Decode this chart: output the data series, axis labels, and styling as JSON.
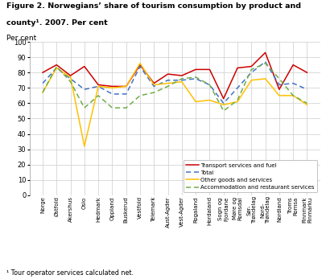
{
  "title_line1": "Figure 2. Norwegians’ share of tourism consumption by product and",
  "title_line2": "county¹. 2007. Per cent",
  "ylabel": "Per cent",
  "footnote": "¹ Tour operator services calculated net.",
  "ylim": [
    0,
    100
  ],
  "yticks": [
    0,
    10,
    20,
    30,
    40,
    50,
    60,
    70,
    80,
    90,
    100
  ],
  "x_labels": [
    "Norge",
    "Østfold",
    "Akershus",
    "Oslo",
    "Hedmark",
    "Oppland",
    "Buskerud",
    "Vestfold",
    "Telemark",
    "Aust-Agder",
    "Vest-Agder",
    "Rogaland",
    "Hordaland",
    "Sogn og\nFjordane",
    "Møre og\nRomsdal",
    "Sør-\nTrøndelag",
    "Nord-\nTrøndelag",
    "Nordland",
    "Troms\nRomsa",
    "Finnmark\nFinmárku"
  ],
  "transport": [
    80,
    85,
    78,
    84,
    72,
    71,
    71,
    85,
    73,
    79,
    78,
    82,
    82,
    63,
    83,
    84,
    93,
    69,
    85,
    80
  ],
  "total": [
    73,
    83,
    76,
    69,
    71,
    66,
    66,
    84,
    71,
    75,
    75,
    76,
    72,
    60,
    70,
    80,
    87,
    72,
    73,
    69
  ],
  "other": [
    67,
    83,
    77,
    32,
    71,
    70,
    71,
    86,
    72,
    73,
    74,
    61,
    62,
    59,
    61,
    75,
    76,
    65,
    65,
    59
  ],
  "accommodation": [
    67,
    84,
    74,
    57,
    65,
    57,
    57,
    65,
    67,
    71,
    76,
    77,
    72,
    55,
    62,
    82,
    86,
    76,
    65,
    60
  ],
  "transport_color": "#cc0000",
  "total_color": "#4472c4",
  "other_color": "#ffc000",
  "accommodation_color": "#70ad47",
  "background_color": "#ffffff",
  "grid_color": "#cccccc",
  "legend_labels": [
    "Transport services and fuel",
    "Total",
    "Other goods and services",
    "Accommodation and restaurant services"
  ]
}
